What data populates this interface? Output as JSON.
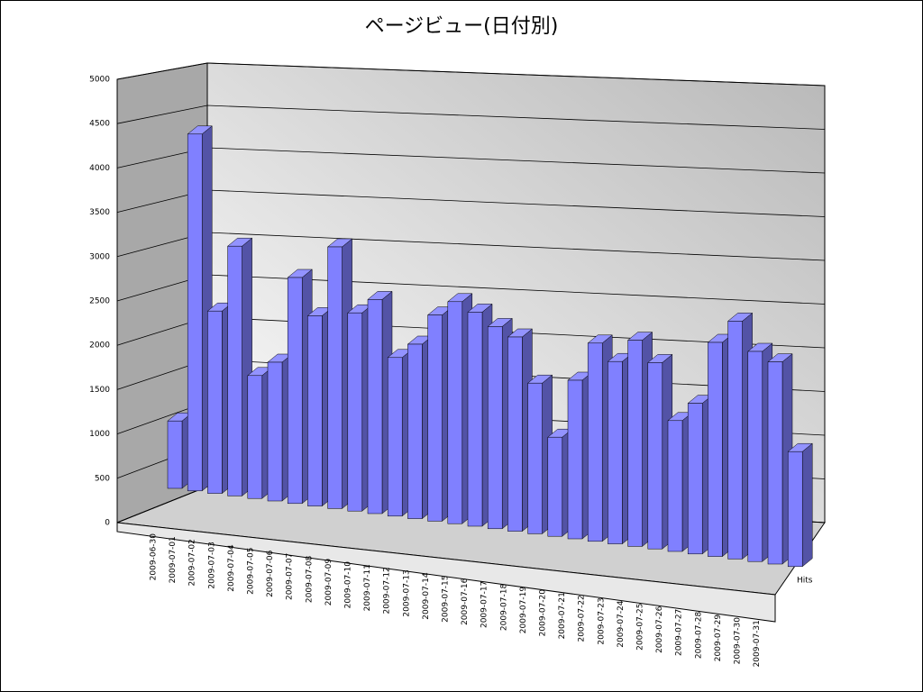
{
  "chart_data": {
    "type": "bar3d",
    "title": "ページビュー(日付別)",
    "categories": [
      "2009-06-30",
      "2009-07-01",
      "2009-07-02",
      "2009-07-03",
      "2009-07-04",
      "2009-07-05",
      "2009-07-06",
      "2009-07-07",
      "2009-07-08",
      "2009-07-09",
      "2009-07-10",
      "2009-07-11",
      "2009-07-12",
      "2009-07-13",
      "2009-07-14",
      "2009-07-15",
      "2009-07-16",
      "2009-07-17",
      "2009-07-18",
      "2009-07-19",
      "2009-07-20",
      "2009-07-21",
      "2009-07-22",
      "2009-07-23",
      "2009-07-24",
      "2009-07-25",
      "2009-07-26",
      "2009-07-27",
      "2009-07-28",
      "2009-07-29",
      "2009-07-30",
      "2009-07-31"
    ],
    "series": [
      {
        "name": "Hits",
        "color": "#8080ff",
        "values": [
          850,
          4500,
          2300,
          3150,
          1550,
          1750,
          2850,
          2400,
          3300,
          2500,
          2700,
          2000,
          2200,
          2600,
          2800,
          2700,
          2550,
          2450,
          1900,
          1250,
          2000,
          2500,
          2300,
          2600,
          2350,
          1650,
          1900,
          2700,
          3000,
          2650,
          2550,
          1450
        ]
      }
    ],
    "ylim": [
      0,
      5000
    ],
    "yticks": [
      0,
      500,
      1000,
      1500,
      2000,
      2500,
      3000,
      3500,
      4000,
      4500,
      5000
    ],
    "grid": true
  }
}
